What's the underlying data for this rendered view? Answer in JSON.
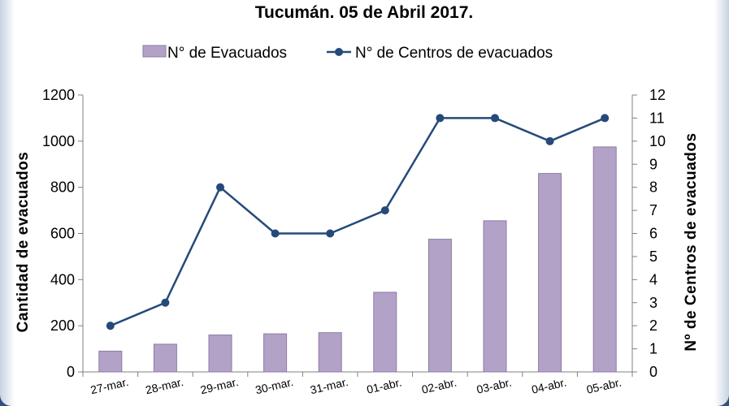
{
  "chart_data": {
    "type": "bar",
    "title": "Tucumán. 05 de Abril 2017.",
    "categories": [
      "27-mar.",
      "28-mar.",
      "29-mar.",
      "30-mar.",
      "31-mar.",
      "01-abr.",
      "02-abr.",
      "03-abr.",
      "04-abr.",
      "05-abr."
    ],
    "series": [
      {
        "name": "N° de Evacuados",
        "type": "bar",
        "axis": "left",
        "color": "#b3a2c7",
        "values": [
          90,
          120,
          160,
          165,
          170,
          345,
          575,
          655,
          860,
          975
        ]
      },
      {
        "name": "N° de Centros de evacuados",
        "type": "line",
        "axis": "right",
        "color": "#254a79",
        "values": [
          2,
          3,
          8,
          6,
          6,
          7,
          11,
          11,
          10,
          11
        ]
      }
    ],
    "ylabel": "Cantidad de evacuados",
    "y2label": "Nº de Centros de evacuados",
    "ylim": [
      0,
      1200
    ],
    "yticks": [
      0,
      200,
      400,
      600,
      800,
      1000,
      1200
    ],
    "y2lim": [
      0,
      12
    ],
    "y2ticks": [
      0,
      1,
      2,
      3,
      4,
      5,
      6,
      7,
      8,
      9,
      10,
      11,
      12
    ],
    "grid": false,
    "legend_position": "top"
  }
}
